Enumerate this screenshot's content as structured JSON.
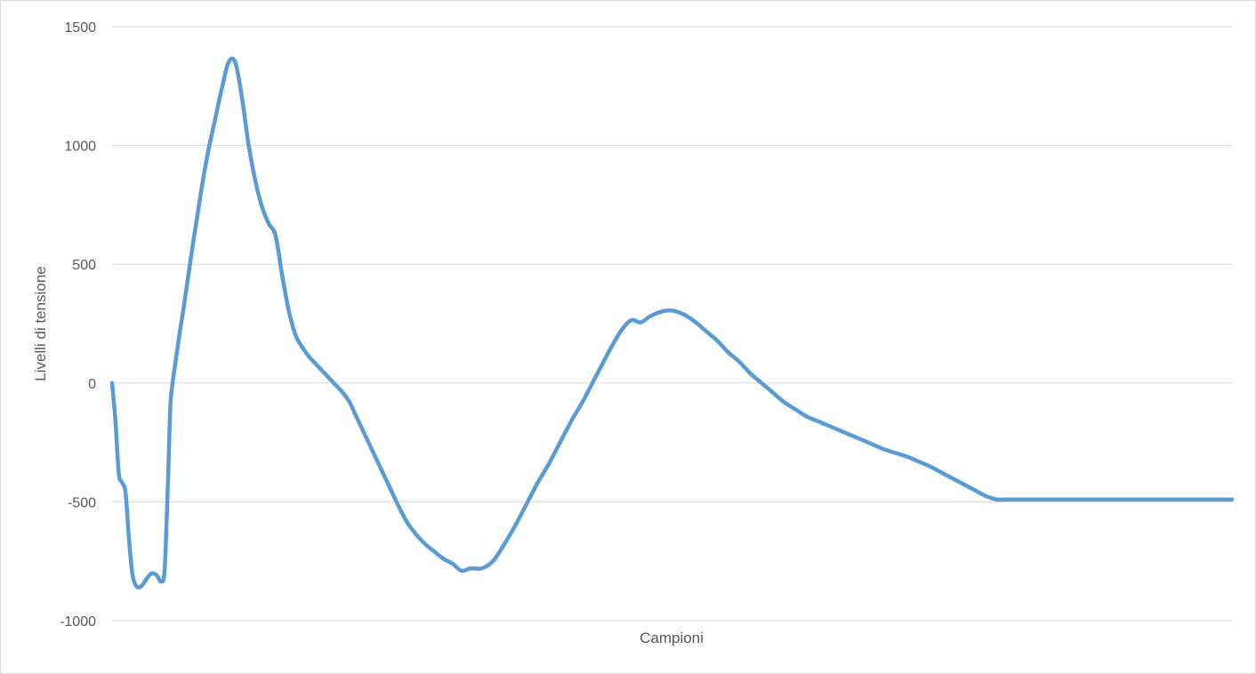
{
  "chart_data": {
    "type": "line",
    "title": "",
    "xlabel": "Campioni",
    "ylabel": "Livelli di tensione",
    "ylim": [
      -1000,
      1500
    ],
    "yticks": [
      1500,
      1000,
      500,
      0,
      -500,
      -1000
    ],
    "grid": true,
    "legend": "none",
    "line_color": "#5B9BD5",
    "series": [
      {
        "x": [
          0,
          3,
          6,
          9,
          12,
          15,
          18,
          21,
          24,
          27,
          30,
          33,
          36,
          40,
          44,
          47,
          50,
          52,
          54,
          57,
          60,
          64,
          68,
          72,
          76,
          81,
          86,
          92,
          98,
          104,
          110,
          116,
          122,
          128,
          134,
          140,
          146,
          152,
          158,
          164,
          170,
          176,
          182,
          188,
          194,
          200,
          206,
          212,
          218,
          224,
          232,
          240,
          248,
          256,
          264,
          272,
          280,
          288,
          296,
          304,
          312,
          320,
          330,
          340,
          350,
          360,
          370,
          380,
          390,
          400,
          410,
          420,
          430,
          440,
          448,
          456,
          464,
          472,
          480,
          490,
          500,
          510,
          520,
          530,
          540,
          550,
          560,
          570,
          580,
          590,
          600,
          610,
          620,
          630,
          640,
          650,
          660,
          670,
          680,
          690,
          700,
          710,
          720,
          730,
          740,
          750,
          760,
          770,
          780,
          790,
          800,
          810,
          820,
          830,
          840,
          850,
          860,
          870,
          880,
          890,
          900,
          910,
          920,
          930,
          940,
          950,
          960,
          970,
          980,
          990,
          1000
        ],
        "y": [
          0,
          -160,
          -380,
          -420,
          -460,
          -650,
          -800,
          -850,
          -860,
          -850,
          -830,
          -810,
          -800,
          -810,
          -835,
          -780,
          -400,
          -100,
          0,
          100,
          200,
          320,
          450,
          580,
          700,
          850,
          980,
          1110,
          1240,
          1350,
          1350,
          1200,
          1000,
          850,
          740,
          670,
          620,
          450,
          300,
          200,
          150,
          110,
          80,
          50,
          20,
          -10,
          -40,
          -80,
          -140,
          -200,
          -280,
          -360,
          -440,
          -520,
          -590,
          -640,
          -680,
          -710,
          -740,
          -760,
          -790,
          -780,
          -780,
          -750,
          -680,
          -600,
          -510,
          -420,
          -340,
          -250,
          -160,
          -80,
          10,
          100,
          170,
          230,
          265,
          255,
          280,
          300,
          305,
          290,
          260,
          220,
          180,
          130,
          90,
          40,
          0,
          -40,
          -80,
          -110,
          -140,
          -160,
          -180,
          -200,
          -220,
          -240,
          -260,
          -280,
          -295,
          -310,
          -330,
          -350,
          -375,
          -400,
          -425,
          -450,
          -475,
          -490,
          -490,
          -490,
          -490,
          -490,
          -490,
          -490,
          -490,
          -490,
          -490,
          -490,
          -490,
          -490,
          -490,
          -490,
          -490,
          -490,
          -490,
          -490,
          -490,
          -490,
          -490
        ]
      }
    ]
  }
}
